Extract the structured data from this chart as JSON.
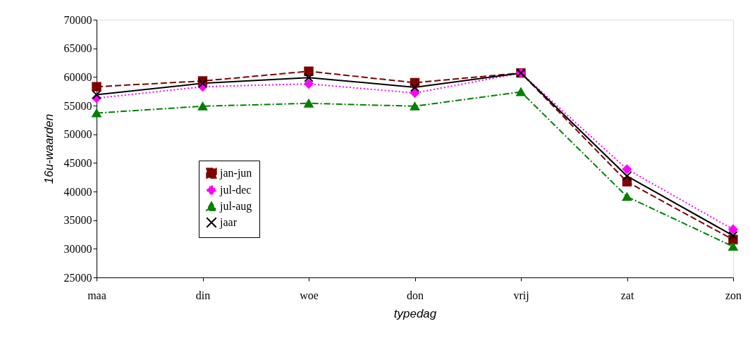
{
  "chart_data": {
    "type": "line",
    "xlabel": "typedag",
    "ylabel": "16u-waarden",
    "categories": [
      "maa",
      "din",
      "woe",
      "don",
      "vrij",
      "zat",
      "zon"
    ],
    "series": [
      {
        "name": "jan-jun",
        "color": "#800000",
        "line_style": "dashed",
        "marker": "square",
        "values": [
          58300,
          59300,
          61000,
          59000,
          60700,
          41700,
          31600
        ]
      },
      {
        "name": "jul-dec",
        "color": "#ff00ff",
        "line_style": "dotted",
        "marker": "diamond",
        "values": [
          56300,
          58300,
          58800,
          57200,
          60700,
          43900,
          33400
        ]
      },
      {
        "name": "jul-aug",
        "color": "#008000",
        "line_style": "dashdot",
        "marker": "triangle",
        "values": [
          53700,
          54900,
          55400,
          54900,
          57400,
          39100,
          30400
        ]
      },
      {
        "name": "jaar",
        "color": "#000000",
        "line_style": "solid",
        "marker": "cross",
        "values": [
          56900,
          58900,
          59900,
          58200,
          60700,
          42700,
          32300
        ]
      }
    ],
    "ylim": [
      25000,
      70000
    ],
    "yticks": [
      25000,
      30000,
      35000,
      40000,
      45000,
      50000,
      55000,
      60000,
      65000,
      70000
    ],
    "grid": false,
    "legend": "left"
  }
}
